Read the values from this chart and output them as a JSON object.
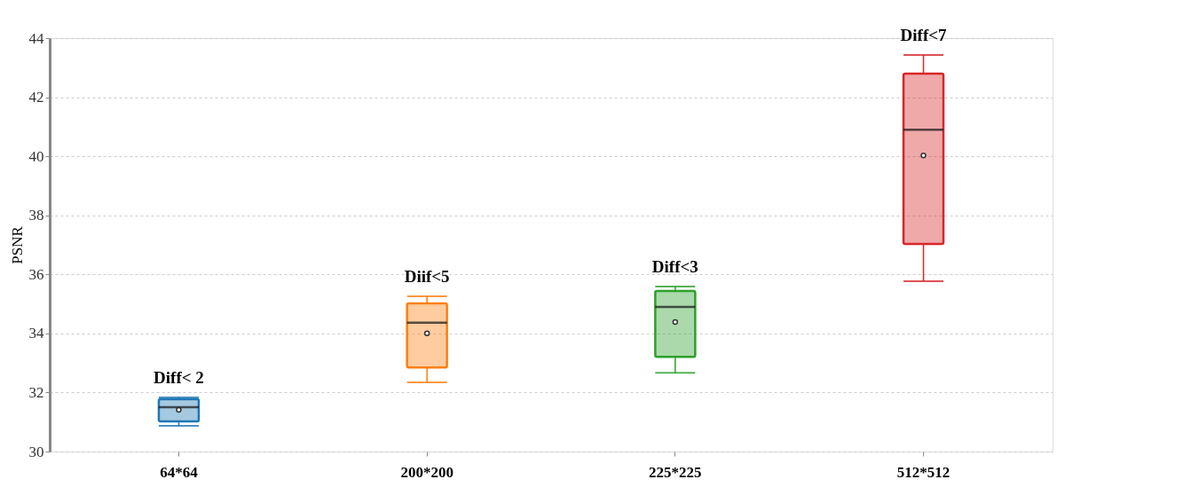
{
  "chart_data": {
    "type": "box",
    "ylabel": "PSNR",
    "categories": [
      "64*64",
      "200*200",
      "225*225",
      "512*512"
    ],
    "colors": [
      "#1f77b4",
      "#ff7f0e",
      "#2ca02c",
      "#d62728"
    ],
    "boxes": [
      {
        "low": 30.87,
        "q1": 31.02,
        "median": 31.5,
        "q3": 31.77,
        "high": 31.83,
        "mean": 31.41
      },
      {
        "low": 32.34,
        "q1": 32.85,
        "median": 34.36,
        "q3": 35.02,
        "high": 35.26,
        "mean": 34.0
      },
      {
        "low": 32.67,
        "q1": 33.21,
        "median": 34.9,
        "q3": 35.44,
        "high": 35.59,
        "mean": 34.39
      },
      {
        "low": 35.77,
        "q1": 37.03,
        "median": 40.9,
        "q3": 42.8,
        "high": 43.43,
        "mean": 40.03
      }
    ],
    "ylim": [
      30,
      44
    ],
    "yticks": [
      30,
      32,
      34,
      36,
      38,
      40,
      42,
      44
    ],
    "grid": "y",
    "annotations": [
      "Diff< 2",
      "Diif<5",
      "Diff<3",
      "Diff<7"
    ]
  }
}
